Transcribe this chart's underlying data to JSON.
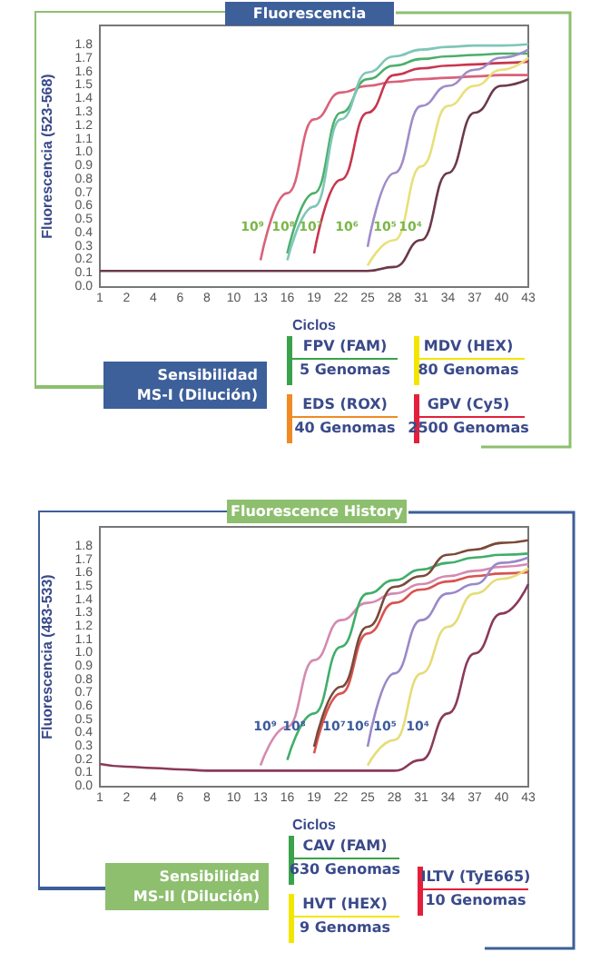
{
  "chart_data": [
    {
      "type": "line",
      "title": "Fluorescencia",
      "xlabel": "Ciclos",
      "ylabel": "Fluorescencia (523-568)",
      "categories": [
        "1",
        "2",
        "4",
        "6",
        "8",
        "10",
        "13",
        "16",
        "19",
        "22",
        "25",
        "28",
        "31",
        "34",
        "37",
        "40",
        "43"
      ],
      "ylim": [
        0,
        1.95
      ],
      "yticks": [
        {
          "value": 0,
          "label": "0.0"
        },
        {
          "value": 0.1,
          "label": "0.1"
        },
        {
          "value": 0.2,
          "label": "0.2"
        },
        {
          "value": 0.3,
          "label": "0.3"
        },
        {
          "value": 0.4,
          "label": "0.4"
        },
        {
          "value": 0.5,
          "label": "0.5"
        },
        {
          "value": 0.6,
          "label": "0.6"
        },
        {
          "value": 0.7,
          "label": "0.7"
        },
        {
          "value": 0.8,
          "label": "0.8"
        },
        {
          "value": 0.9,
          "label": "0.9"
        },
        {
          "value": 1,
          "label": "1.0"
        },
        {
          "value": 1.1,
          "label": "1.1"
        },
        {
          "value": 1.2,
          "label": "1.2"
        },
        {
          "value": 1.3,
          "label": "1.3"
        },
        {
          "value": 1.4,
          "label": "1.4"
        },
        {
          "value": 1.5,
          "label": "1.5"
        },
        {
          "value": 1.6,
          "label": "1.6"
        },
        {
          "value": 1.7,
          "label": "1.7"
        },
        {
          "value": 1.8,
          "label": "1.8"
        }
      ],
      "grid": false,
      "marker": "none",
      "line_style": "solid",
      "series": [
        {
          "color": "#6b3a4a",
          "values": [
            0.12,
            0.12,
            0.12,
            0.12,
            0.12,
            0.12,
            0.12,
            0.12,
            0.12,
            0.12,
            0.12,
            0.15,
            0.35,
            0.85,
            1.3,
            1.5,
            1.55
          ]
        },
        {
          "color": "#d9627a",
          "values": [
            null,
            null,
            null,
            null,
            null,
            null,
            0.2,
            0.7,
            1.25,
            1.45,
            1.5,
            1.53,
            1.55,
            1.56,
            1.57,
            1.58,
            1.58
          ]
        },
        {
          "color": "#4caf6a",
          "values": [
            null,
            null,
            null,
            null,
            null,
            null,
            null,
            0.25,
            0.7,
            1.3,
            1.55,
            1.65,
            1.7,
            1.72,
            1.73,
            1.74,
            1.74
          ]
        },
        {
          "color": "#7fc6b9",
          "values": [
            null,
            null,
            null,
            null,
            null,
            null,
            null,
            0.2,
            0.6,
            1.25,
            1.6,
            1.72,
            1.77,
            1.79,
            1.8,
            1.8,
            1.81
          ]
        },
        {
          "color": "#c8364f",
          "values": [
            null,
            null,
            null,
            null,
            null,
            null,
            null,
            null,
            0.25,
            0.8,
            1.3,
            1.58,
            1.63,
            1.65,
            1.66,
            1.67,
            1.68
          ]
        },
        {
          "color": "#a08cc8",
          "values": [
            null,
            null,
            null,
            null,
            null,
            null,
            null,
            null,
            null,
            null,
            0.3,
            0.85,
            1.35,
            1.5,
            1.62,
            1.71,
            1.77
          ]
        },
        {
          "color": "#e8e07a",
          "values": [
            null,
            null,
            null,
            null,
            null,
            null,
            null,
            null,
            null,
            null,
            0.16,
            0.35,
            0.9,
            1.35,
            1.5,
            1.62,
            1.71
          ]
        }
      ],
      "annotations": [
        "Sensibilidad\nMS-I (Dilución)",
        "FPV (FAM)",
        "5 Genomas",
        "MDV (HEX)",
        "80 Genomas",
        "EDS (ROX)",
        "40 Genomas",
        "GPV (Cy5)",
        "2500 Genomas",
        "10⁹",
        "10⁸",
        "10⁷",
        "10⁶",
        "10⁵",
        "10⁴"
      ]
    },
    {
      "type": "line",
      "title": "Fluorescence History",
      "xlabel": "Ciclos",
      "ylabel": "Fluorescencia (483-533)",
      "categories": [
        "1",
        "2",
        "4",
        "6",
        "8",
        "10",
        "13",
        "16",
        "19",
        "22",
        "25",
        "28",
        "31",
        "34",
        "37",
        "40",
        "43"
      ],
      "ylim": [
        0,
        1.95
      ],
      "yticks": [
        {
          "value": 0,
          "label": "0.0"
        },
        {
          "value": 0.1,
          "label": "0.1"
        },
        {
          "value": 0.2,
          "label": "0.2"
        },
        {
          "value": 0.3,
          "label": "0.3"
        },
        {
          "value": 0.4,
          "label": "0.4"
        },
        {
          "value": 0.5,
          "label": "0.5"
        },
        {
          "value": 0.6,
          "label": "0.6"
        },
        {
          "value": 0.7,
          "label": "0.7"
        },
        {
          "value": 0.8,
          "label": "0.8"
        },
        {
          "value": 0.9,
          "label": "0.9"
        },
        {
          "value": 1,
          "label": "1.0"
        },
        {
          "value": 1.1,
          "label": "1.1"
        },
        {
          "value": 1.2,
          "label": "1.2"
        },
        {
          "value": 1.3,
          "label": "1.3"
        },
        {
          "value": 1.4,
          "label": "1.4"
        },
        {
          "value": 1.5,
          "label": "1.5"
        },
        {
          "value": 1.6,
          "label": "1.6"
        },
        {
          "value": 1.7,
          "label": "1.7"
        },
        {
          "value": 1.8,
          "label": "1.8"
        }
      ],
      "grid": false,
      "marker": "none",
      "line_style": "solid",
      "series": [
        {
          "color": "#8a3a5a",
          "values": [
            0.17,
            0.15,
            0.14,
            0.13,
            0.12,
            0.12,
            0.12,
            0.12,
            0.12,
            0.12,
            0.12,
            0.12,
            0.2,
            0.55,
            1.0,
            1.3,
            1.52
          ]
        },
        {
          "color": "#d48ab0",
          "values": [
            null,
            null,
            null,
            null,
            null,
            null,
            0.16,
            0.45,
            0.95,
            1.25,
            1.38,
            1.45,
            1.52,
            1.58,
            1.62,
            1.65,
            1.67
          ]
        },
        {
          "color": "#3fae6a",
          "values": [
            null,
            null,
            null,
            null,
            null,
            null,
            null,
            0.2,
            0.55,
            1.05,
            1.45,
            1.55,
            1.63,
            1.68,
            1.72,
            1.74,
            1.75
          ]
        },
        {
          "color": "#d9534f",
          "values": [
            null,
            null,
            null,
            null,
            null,
            null,
            null,
            null,
            0.25,
            0.7,
            1.15,
            1.38,
            1.48,
            1.54,
            1.58,
            1.6,
            1.61
          ]
        },
        {
          "color": "#7a4a3a",
          "values": [
            null,
            null,
            null,
            null,
            null,
            null,
            null,
            null,
            0.3,
            0.75,
            1.2,
            1.5,
            1.58,
            1.74,
            1.78,
            1.83,
            1.85
          ]
        },
        {
          "color": "#9a88c8",
          "values": [
            null,
            null,
            null,
            null,
            null,
            null,
            null,
            null,
            null,
            null,
            0.3,
            0.85,
            1.25,
            1.45,
            1.52,
            1.68,
            1.72
          ]
        },
        {
          "color": "#e6dc78",
          "values": [
            null,
            null,
            null,
            null,
            null,
            null,
            null,
            null,
            null,
            null,
            0.16,
            0.35,
            0.85,
            1.2,
            1.45,
            1.56,
            1.64
          ]
        }
      ],
      "annotations": [
        "Sensibilidad\nMS-II (Dilución)",
        "CAV (FAM)",
        "630 Genomas",
        "HVT (HEX)",
        "9 Genomas",
        "ILTV (TyE665)",
        "10 Genomas",
        "10⁹",
        "10⁸",
        "10⁷",
        "10⁶",
        "10⁵",
        "10⁴"
      ]
    }
  ]
}
